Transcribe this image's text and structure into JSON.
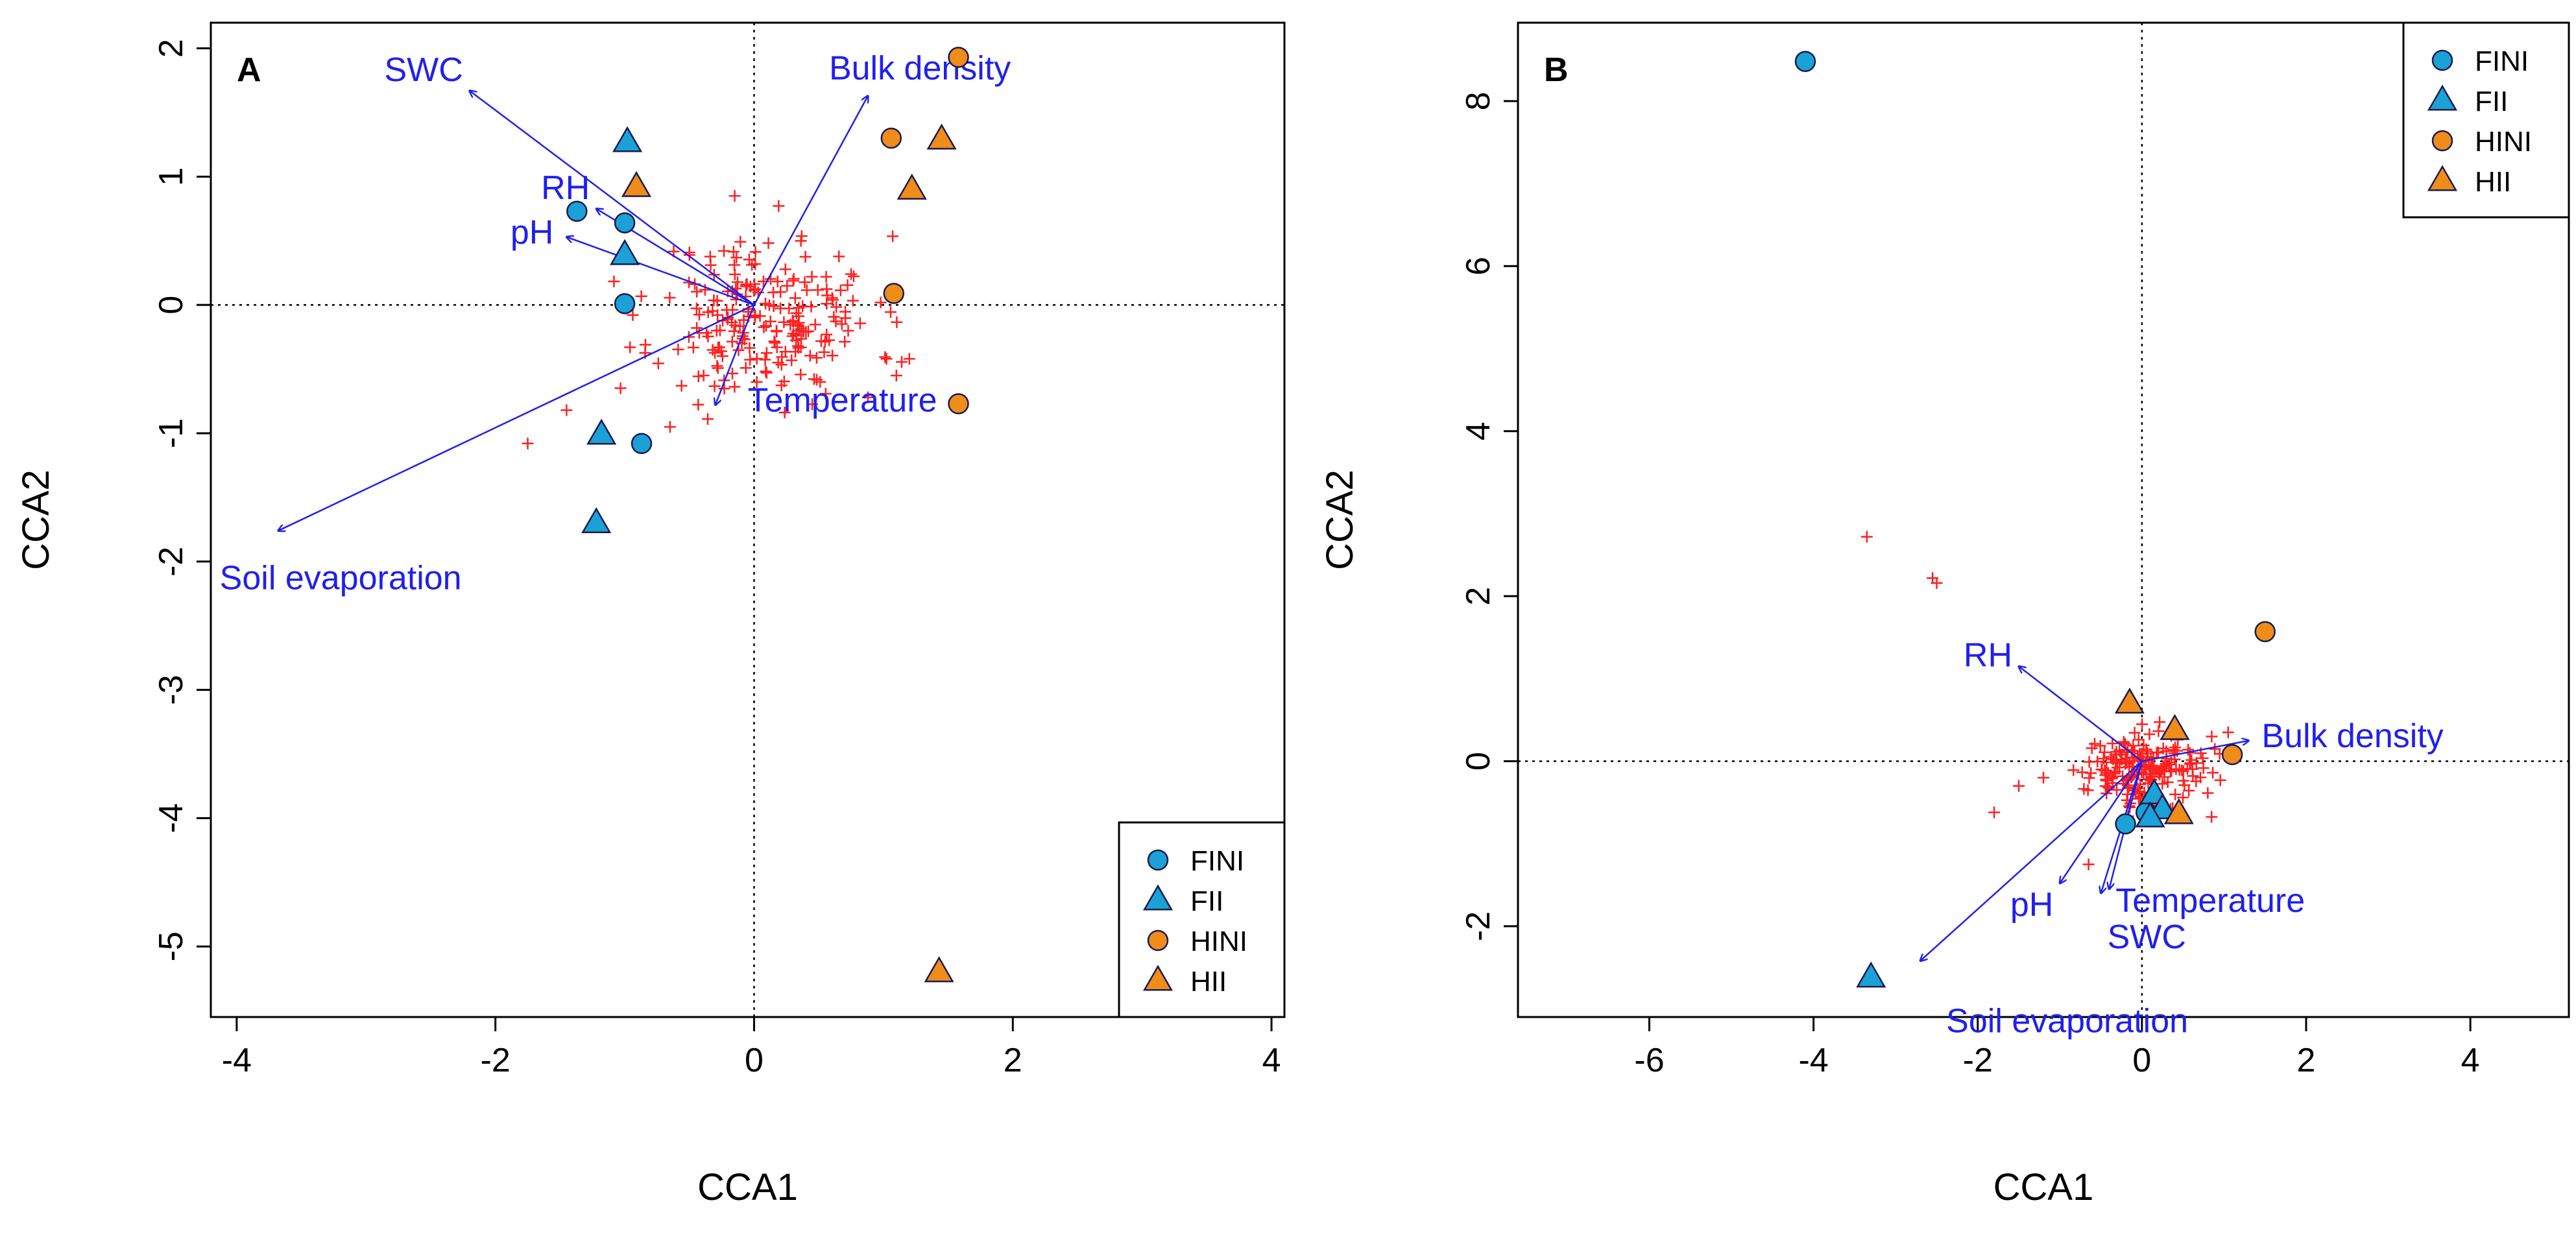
{
  "chart_data": [
    {
      "panel": "A",
      "type": "scatter",
      "subtype": "CCA biplot",
      "xlabel": "CCA1",
      "ylabel": "CCA2",
      "xlim": [
        -4.2,
        4.1
      ],
      "ylim": [
        -5.55,
        2.2
      ],
      "xticks": [
        -4,
        -2,
        0,
        2,
        4
      ],
      "yticks": [
        -5,
        -4,
        -3,
        -2,
        -1,
        0,
        1,
        2
      ],
      "reference_lines": {
        "x": 0,
        "y": 0,
        "style": "dotted"
      },
      "legend": {
        "position": "bottom-right",
        "entries": [
          "FINI",
          "FII",
          "HINI",
          "HII"
        ]
      },
      "colors": {
        "fi": "#1ba1d6",
        "hi": "#f08c1a",
        "arrow": "#2020ee",
        "species": "#ff2020"
      },
      "env_arrows": [
        {
          "label": "SWC",
          "x": -2.2,
          "y": 1.67
        },
        {
          "label": "Bulk density",
          "x": 0.88,
          "y": 1.63
        },
        {
          "label": "RH",
          "x": -1.22,
          "y": 0.75
        },
        {
          "label": "pH",
          "x": -1.45,
          "y": 0.53
        },
        {
          "label": "Temperature",
          "x": -0.3,
          "y": -0.78
        },
        {
          "label": "Soil evaporation",
          "x": -3.68,
          "y": -1.76
        }
      ],
      "sites": [
        {
          "group": "FINI",
          "x": -1.37,
          "y": 0.73
        },
        {
          "group": "FINI",
          "x": -1.0,
          "y": 0.64
        },
        {
          "group": "FINI",
          "x": -1.0,
          "y": 0.01
        },
        {
          "group": "FINI",
          "x": -0.87,
          "y": -1.08
        },
        {
          "group": "FII",
          "x": -0.98,
          "y": 1.27
        },
        {
          "group": "FII",
          "x": -1.0,
          "y": 0.39
        },
        {
          "group": "FII",
          "x": -1.18,
          "y": -1.01
        },
        {
          "group": "FII",
          "x": -1.22,
          "y": -1.7
        },
        {
          "group": "HINI",
          "x": 1.58,
          "y": 1.93
        },
        {
          "group": "HINI",
          "x": 1.06,
          "y": 1.3
        },
        {
          "group": "HINI",
          "x": 1.08,
          "y": 0.09
        },
        {
          "group": "HINI",
          "x": 1.58,
          "y": -0.77
        },
        {
          "group": "HII",
          "x": -0.91,
          "y": 0.92
        },
        {
          "group": "HII",
          "x": 1.45,
          "y": 1.29
        },
        {
          "group": "HII",
          "x": 1.22,
          "y": 0.9
        },
        {
          "group": "HII",
          "x": 1.43,
          "y": -5.2
        }
      ],
      "species_scatter": {
        "marker": "+",
        "count": 220,
        "center": [
          0.1,
          -0.1
        ],
        "sd": [
          0.42,
          0.32
        ],
        "seed": 11,
        "outliers": [
          [
            -1.75,
            -1.08
          ],
          [
            -1.45,
            -0.82
          ],
          [
            -0.15,
            0.85
          ],
          [
            1.2,
            -0.42
          ],
          [
            1.1,
            -0.55
          ],
          [
            -0.65,
            -0.95
          ],
          [
            0.88,
            -0.72
          ]
        ]
      },
      "annotations": [
        "A"
      ]
    },
    {
      "panel": "B",
      "type": "scatter",
      "subtype": "CCA biplot",
      "xlabel": "CCA1",
      "ylabel": "CCA2",
      "xlim": [
        -7.6,
        5.2
      ],
      "ylim": [
        -3.1,
        8.95
      ],
      "xticks": [
        -6,
        -4,
        -2,
        0,
        2,
        4
      ],
      "yticks": [
        -2,
        0,
        2,
        4,
        6,
        8
      ],
      "reference_lines": {
        "x": 0,
        "y": 0,
        "style": "dotted"
      },
      "legend": {
        "position": "top-right",
        "entries": [
          "FINI",
          "FII",
          "HINI",
          "HII"
        ]
      },
      "colors": {
        "fi": "#1ba1d6",
        "hi": "#f08c1a",
        "arrow": "#2020ee",
        "species": "#ff2020"
      },
      "env_arrows": [
        {
          "label": "RH",
          "x": -1.5,
          "y": 1.15
        },
        {
          "label": "Bulk density",
          "x": 1.3,
          "y": 0.25
        },
        {
          "label": "Temperature",
          "x": -0.4,
          "y": -1.55
        },
        {
          "label": "pH",
          "x": -1.0,
          "y": -1.48
        },
        {
          "label": "SWC",
          "x": -0.5,
          "y": -1.6
        },
        {
          "label": "Soil evaporation",
          "x": -2.7,
          "y": -2.42
        }
      ],
      "sites": [
        {
          "group": "FINI",
          "x": -4.1,
          "y": 8.48
        },
        {
          "group": "FINI",
          "x": -0.2,
          "y": -0.76
        },
        {
          "group": "FINI",
          "x": 0.05,
          "y": -0.62
        },
        {
          "group": "FII",
          "x": -3.3,
          "y": -2.62
        },
        {
          "group": "FII",
          "x": 0.15,
          "y": -0.4
        },
        {
          "group": "FII",
          "x": 0.25,
          "y": -0.58
        },
        {
          "group": "FII",
          "x": 0.1,
          "y": -0.68
        },
        {
          "group": "HINI",
          "x": 1.5,
          "y": 1.57
        },
        {
          "group": "HINI",
          "x": 1.1,
          "y": 0.08
        },
        {
          "group": "HII",
          "x": -0.15,
          "y": 0.7
        },
        {
          "group": "HII",
          "x": 0.4,
          "y": 0.38
        },
        {
          "group": "HII",
          "x": 0.45,
          "y": -0.64
        }
      ],
      "species_scatter": {
        "marker": "+",
        "count": 200,
        "center": [
          -0.05,
          -0.1
        ],
        "sd": [
          0.38,
          0.22
        ],
        "seed": 29,
        "outliers": [
          [
            -3.35,
            2.72
          ],
          [
            -2.55,
            2.22
          ],
          [
            -2.5,
            2.16
          ],
          [
            -1.8,
            -0.62
          ],
          [
            -1.5,
            -0.3
          ],
          [
            -1.2,
            -0.2
          ],
          [
            0.85,
            0.3
          ],
          [
            1.05,
            0.35
          ],
          [
            -0.65,
            -1.25
          ]
        ]
      },
      "annotations": [
        "B"
      ]
    }
  ]
}
